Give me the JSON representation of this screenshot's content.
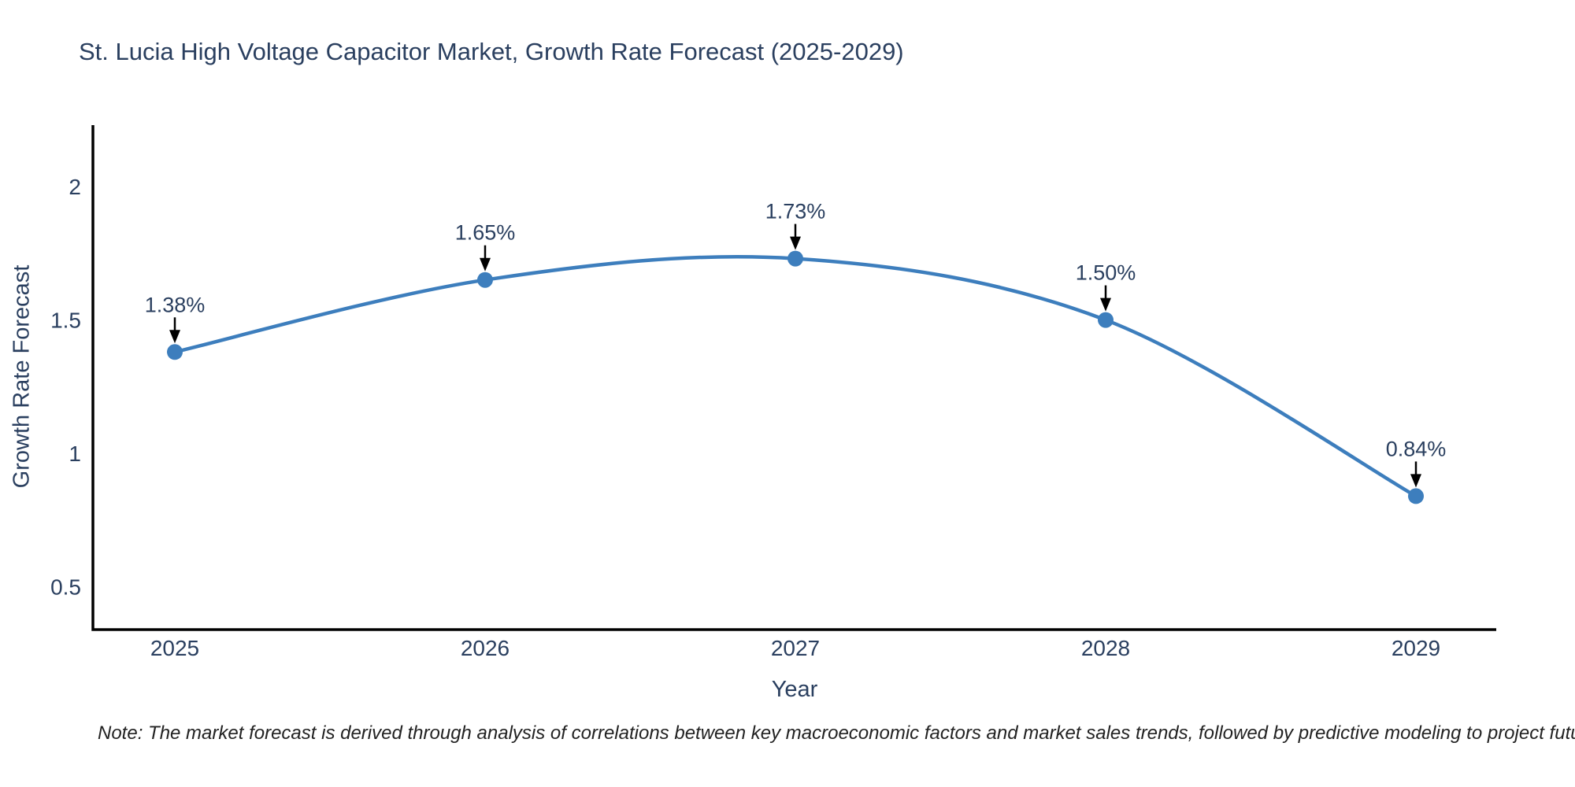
{
  "title": "St. Lucia High Voltage Capacitor Market, Growth Rate Forecast (2025-2029)",
  "note": "Note: The market forecast is derived through analysis of correlations between key macroeconomic factors and market sales trends, followed by predictive modeling to project future sales",
  "chart_data": {
    "type": "line",
    "title": "St. Lucia High Voltage Capacitor Market, Growth Rate Forecast (2025-2029)",
    "xlabel": "Year",
    "ylabel": "Growth Rate Forecast",
    "categories": [
      "2025",
      "2026",
      "2027",
      "2028",
      "2029"
    ],
    "values": [
      1.38,
      1.65,
      1.73,
      1.5,
      0.84
    ],
    "data_labels": [
      "1.38%",
      "1.65%",
      "1.73%",
      "1.50%",
      "0.84%"
    ],
    "yticks": [
      0.5,
      1,
      1.5,
      2
    ],
    "ylim": [
      0.34,
      2.23
    ],
    "grid": false,
    "legend": "none",
    "line_shape": "spline",
    "marker": "circle",
    "colors": {
      "line": "#3d7ebd",
      "marker": "#3d7ebd",
      "axis": "#000000",
      "text": "#2a3f5f",
      "annotation_arrow": "#000000",
      "background": "#ffffff"
    }
  }
}
